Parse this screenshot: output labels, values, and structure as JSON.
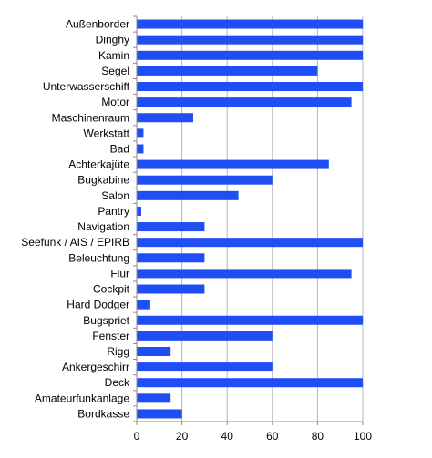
{
  "chart_data": {
    "type": "bar",
    "orientation": "horizontal",
    "title": "",
    "xlabel": "",
    "ylabel": "",
    "xlim": [
      0,
      100
    ],
    "xticks": [
      0,
      20,
      40,
      60,
      80,
      100
    ],
    "grid": "vertical",
    "legend": "none",
    "bar_color": "#1f4ef5",
    "categories": [
      "Außenborder",
      "Dinghy",
      "Kamin",
      "Segel",
      "Unterwasserschiff",
      "Motor",
      "Maschinenraum",
      "Werkstatt",
      "Bad",
      "Achterkajüte",
      "Bugkabine",
      "Salon",
      "Pantry",
      "Navigation",
      "Seefunk / AIS / EPIRB",
      "Beleuchtung",
      "Flur",
      "Cockpit",
      "Hard Dodger",
      "Bugspriet",
      "Fenster",
      "Rigg",
      "Ankergeschirr",
      "Deck",
      "Amateurfunkanlage",
      "Bordkasse"
    ],
    "values": [
      100,
      100,
      100,
      80,
      100,
      95,
      25,
      3,
      3,
      85,
      60,
      45,
      2,
      30,
      100,
      30,
      95,
      30,
      6,
      100,
      60,
      15,
      60,
      100,
      15,
      20
    ]
  }
}
